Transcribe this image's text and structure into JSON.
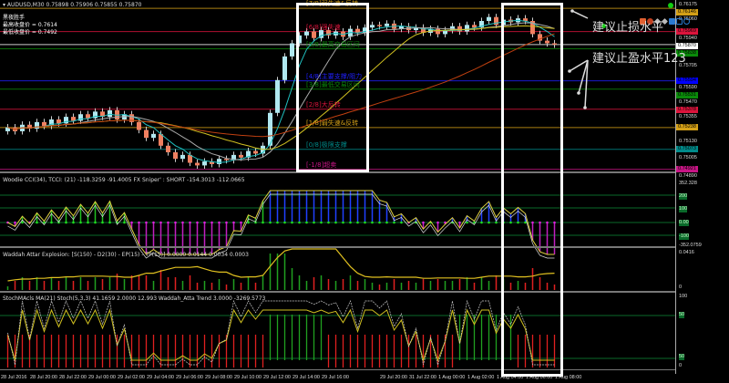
{
  "header": {
    "symbol_line": "AUDUSD,M30  0.75898 0.75906 0.75855 0.75870",
    "info_title": "黑夜胜手",
    "info_lines": [
      "最高收盘价 = 0.7614",
      "最低收盘价 = 0.7492"
    ]
  },
  "price_axis": {
    "ticks": [
      "0.76175",
      "0.76060",
      "0.75940",
      "0.75705",
      "0.75590",
      "0.75470",
      "0.75355",
      "0.75130",
      "0.75005",
      "0.74890"
    ],
    "tags": [
      {
        "v": "0.76146",
        "c": "#d4a017"
      },
      {
        "v": "0.75969",
        "c": "#dc143c"
      },
      {
        "v": "0.75870",
        "c": "#ffffff"
      },
      {
        "v": "0.75838",
        "c": "#0a8a0a"
      },
      {
        "v": "0.75594",
        "c": "#0000ff"
      },
      {
        "v": "0.75531",
        "c": "#0a8a0a"
      },
      {
        "v": "0.75378",
        "c": "#dc143c"
      },
      {
        "v": "0.75238",
        "c": "#d4a017"
      },
      {
        "v": "0.75073",
        "c": "#008b8b"
      },
      {
        "v": "0.74921",
        "c": "#c71585"
      }
    ]
  },
  "murrey": [
    {
      "label": "[7/8]弱失速&反转",
      "price": 0.76146,
      "color": "#d4a017"
    },
    {
      "label": "[6/8]强失速",
      "price": 0.75969,
      "color": "#dc143c"
    },
    {
      "label": "[5/8]最高交易区间",
      "price": 0.75838,
      "color": "#0a8a0a"
    },
    {
      "label": "[4/8]主要支撑/阻力",
      "price": 0.75594,
      "color": "#2020ff"
    },
    {
      "label": "[3/8]最低交易区间",
      "price": 0.75531,
      "color": "#0a8a0a"
    },
    {
      "label": "[2/8]大反转",
      "price": 0.75378,
      "color": "#dc143c"
    },
    {
      "label": "[1/8]弱失速&反转",
      "price": 0.75238,
      "color": "#d4a017"
    },
    {
      "label": "[0/8]极限支撑",
      "price": 0.75073,
      "color": "#008b8b"
    },
    {
      "label": "[-1/8]超卖",
      "price": 0.74921,
      "color": "#c71585"
    }
  ],
  "current_price": 0.7587,
  "candles_close": [
    0.7524,
    0.7521,
    0.7526,
    0.7523,
    0.7528,
    0.7525,
    0.753,
    0.7527,
    0.7532,
    0.7529,
    0.7534,
    0.7531,
    0.7536,
    0.7532,
    0.7537,
    0.753,
    0.7534,
    0.7528,
    0.7522,
    0.7516,
    0.7519,
    0.751,
    0.7505,
    0.75,
    0.7503,
    0.7497,
    0.7495,
    0.7498,
    0.7496,
    0.75,
    0.7499,
    0.7503,
    0.7501,
    0.7506,
    0.7504,
    0.751,
    0.7535,
    0.756,
    0.7578,
    0.7588,
    0.7594,
    0.7597,
    0.7592,
    0.7598,
    0.7594,
    0.7597,
    0.7593,
    0.7599,
    0.7596,
    0.76,
    0.7602,
    0.7601,
    0.7603,
    0.7599,
    0.7601,
    0.7598,
    0.76,
    0.7596,
    0.7599,
    0.7595,
    0.7598,
    0.7601,
    0.7597,
    0.7602,
    0.76,
    0.7605,
    0.7608,
    0.7602,
    0.7606,
    0.7604,
    0.7607,
    0.7605,
    0.7595,
    0.759,
    0.7588,
    0.7587
  ],
  "indicators": {
    "cci": {
      "label": "Woodie CCI(34), TCCI: (21) -118.3259 -91.4005  FX Sniper' : SHORT -154.3013 -112.0665",
      "ticks": [
        "352.328",
        "200",
        "100",
        "0.00",
        "-100",
        "-352.0759"
      ]
    },
    "waddah": {
      "label": "Waddah Attar Explosion: [S(150) - D2(30) - EP(15) - TP(15)] 0.0000 0.0144 0.0034 0.0003",
      "ticks": [
        "0.0416",
        "0"
      ]
    },
    "stoch": {
      "label": "StochMAcls MA(21)  Stoch(5,3,3) 41.1659  2.0000 12.993   Waddah_Atta  Trend 3.0000 -3269.5773",
      "ticks": [
        "100",
        "50",
        "50",
        "0"
      ]
    }
  },
  "time_axis": [
    "28 Jul 2016",
    "28 Jul 20:00",
    "28 Jul 22:00",
    "29 Jul 00:00",
    "29 Jul 02:00",
    "29 Jul 04:00",
    "29 Jul 06:00",
    "29 Jul 08:00",
    "29 Jul 10:00",
    "29 Jul 12:00",
    "29 Jul 14:00",
    "29 Jul 16:00",
    "29 Jul 20:00",
    "31 Jul 22:00",
    "1 Aug 00:00",
    "1 Aug 02:00",
    "1 Aug 04:00",
    "1 Aug 06:00",
    "1 Aug 08:00"
  ],
  "annotations": {
    "stop_loss": "建议止损水平",
    "take_profit": "建议止盈水平123"
  },
  "colors": {
    "bull": "#b0e8f0",
    "bear": "#f08060",
    "ma_fast": "#20c0c0",
    "ma_mid": "#aaaaaa",
    "ma_slow": "#d0c020",
    "ma_long": "#c04010"
  }
}
